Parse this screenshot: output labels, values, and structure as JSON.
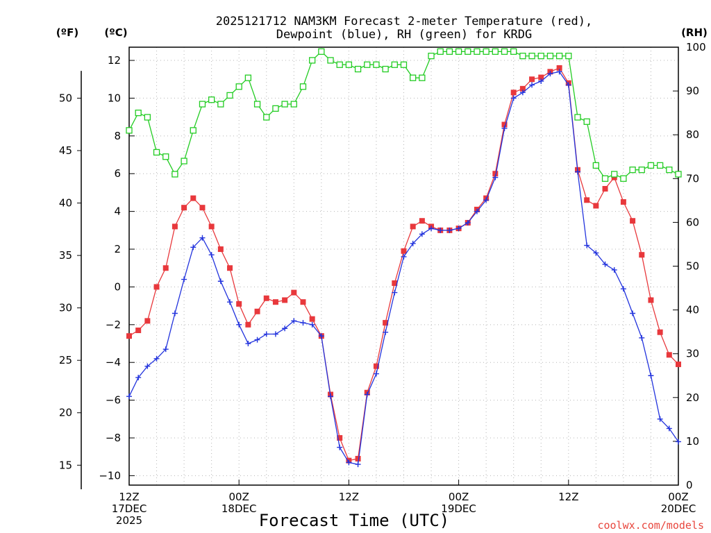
{
  "chart_data": {
    "type": "line",
    "title": [
      "2025121712 NAM3KM Forecast 2-meter Temperature (red),",
      "Dewpoint (blue), RH (green) for KRDG"
    ],
    "xlabel": "Forecast Time (UTC)",
    "credit": "coolwx.com/models",
    "units": {
      "fahrenheit": "(ºF)",
      "celsius": "(ºC)",
      "rh": "(RH)"
    },
    "ylim_celsius": [
      -10.5,
      12.7
    ],
    "ylim_rh": [
      0,
      100
    ],
    "xlim_hours": [
      0,
      60
    ],
    "yticks_celsius": [
      -10,
      -8,
      -6,
      -4,
      -2,
      0,
      2,
      4,
      6,
      8,
      10,
      12
    ],
    "yticks_fahrenheit": [
      15,
      20,
      25,
      30,
      35,
      40,
      45,
      50
    ],
    "yticks_rh": [
      0,
      10,
      20,
      30,
      40,
      50,
      60,
      70,
      80,
      90,
      100
    ],
    "xticks": [
      {
        "hour": 0,
        "lines": [
          "12Z",
          "17DEC",
          "2025"
        ]
      },
      {
        "hour": 12,
        "lines": [
          "00Z",
          "18DEC"
        ]
      },
      {
        "hour": 24,
        "lines": [
          "12Z"
        ]
      },
      {
        "hour": 36,
        "lines": [
          "00Z",
          "19DEC"
        ]
      },
      {
        "hour": 48,
        "lines": [
          "12Z"
        ]
      },
      {
        "hour": 60,
        "lines": [
          "00Z",
          "20DEC"
        ]
      }
    ],
    "x_hours": [
      0,
      1,
      2,
      3,
      4,
      5,
      6,
      7,
      8,
      9,
      10,
      11,
      12,
      13,
      14,
      15,
      16,
      17,
      18,
      19,
      20,
      21,
      22,
      23,
      24,
      25,
      26,
      27,
      28,
      29,
      30,
      31,
      32,
      33,
      34,
      35,
      36,
      37,
      38,
      39,
      40,
      41,
      42,
      43,
      44,
      45,
      46,
      47,
      48,
      49,
      50,
      51,
      52,
      53,
      54,
      55,
      56,
      57,
      58,
      59,
      60
    ],
    "series": [
      {
        "name": "Temperature",
        "color": "#e8383c",
        "marker": "filled-square",
        "values": [
          -2.6,
          -2.3,
          -1.8,
          0.0,
          1.0,
          3.2,
          4.2,
          4.7,
          4.2,
          3.2,
          2.0,
          1.0,
          -0.9,
          -2.0,
          -1.3,
          -0.6,
          -0.8,
          -0.7,
          -0.3,
          -0.8,
          -1.7,
          -2.6,
          -5.7,
          -8.0,
          -9.2,
          -9.1,
          -5.6,
          -4.2,
          -1.9,
          0.2,
          1.9,
          3.2,
          3.5,
          3.2,
          3.0,
          3.0,
          3.1,
          3.4,
          4.1,
          4.7,
          6.0,
          8.6,
          10.3,
          10.5,
          11.0,
          11.1,
          11.4,
          11.6,
          10.8,
          6.2,
          4.6,
          4.3,
          5.2,
          5.8,
          4.5,
          3.5,
          1.7,
          -0.7,
          -2.4,
          -3.6,
          -4.1
        ]
      },
      {
        "name": "Dewpoint",
        "color": "#2233dd",
        "marker": "plus",
        "values": [
          -5.8,
          -4.8,
          -4.2,
          -3.8,
          -3.3,
          -1.4,
          0.4,
          2.1,
          2.6,
          1.7,
          0.3,
          -0.8,
          -2.0,
          -3.0,
          -2.8,
          -2.5,
          -2.5,
          -2.2,
          -1.8,
          -1.9,
          -2.0,
          -2.6,
          -5.8,
          -8.5,
          -9.3,
          -9.4,
          -5.7,
          -4.6,
          -2.4,
          -0.3,
          1.6,
          2.3,
          2.8,
          3.1,
          3.0,
          3.0,
          3.1,
          3.4,
          4.0,
          4.6,
          5.8,
          8.4,
          10.0,
          10.3,
          10.7,
          10.9,
          11.3,
          11.4,
          10.7,
          6.1,
          2.2,
          1.8,
          1.2,
          0.9,
          -0.1,
          -1.4,
          -2.7,
          -4.7,
          -7.0,
          -7.5,
          -8.2
        ]
      },
      {
        "name": "RH",
        "color": "#22cc22",
        "marker": "open-square",
        "values": [
          81,
          85,
          84,
          76,
          75,
          71,
          74,
          81,
          87,
          88,
          87,
          89,
          91,
          93,
          87,
          84,
          86,
          87,
          87,
          91,
          97,
          99,
          97,
          96,
          96,
          95,
          96,
          96,
          95,
          96,
          96,
          93,
          93,
          98,
          99,
          99,
          99,
          99,
          99,
          99,
          99,
          99,
          99,
          98,
          98,
          98,
          98,
          98,
          98,
          84,
          83,
          73,
          70,
          71,
          70,
          72,
          72,
          73,
          73,
          72,
          71
        ]
      }
    ]
  }
}
